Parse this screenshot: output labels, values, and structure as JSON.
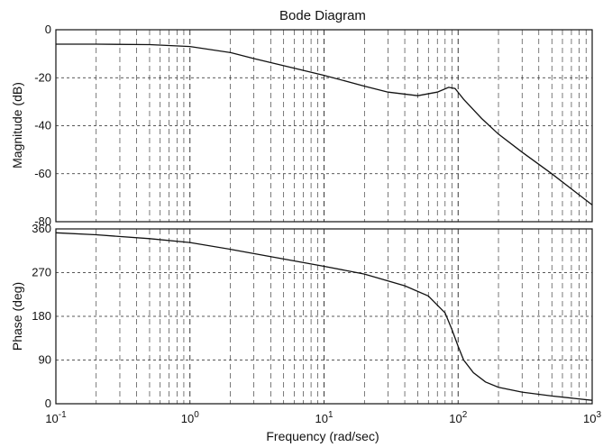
{
  "chart_data": {
    "type": "line",
    "title": "Bode Diagram",
    "xlabel": "Frequency  (rad/sec)",
    "x_scale": "log",
    "xlim": [
      0.1,
      1000
    ],
    "x_ticks": [
      {
        "value": 0.1,
        "base": "10",
        "exp": "-1"
      },
      {
        "value": 1,
        "base": "10",
        "exp": "0"
      },
      {
        "value": 10,
        "base": "10",
        "exp": "1"
      },
      {
        "value": 100,
        "base": "10",
        "exp": "2"
      },
      {
        "value": 1000,
        "base": "10",
        "exp": "3"
      }
    ],
    "grid": true,
    "line_color": "#111111",
    "panels": [
      {
        "ylabel": "Magnitude (dB)",
        "ylim": [
          -80,
          0
        ],
        "y_ticks": [
          "0",
          "-20",
          "-40",
          "-60",
          "-80"
        ],
        "y_tick_values": [
          0,
          -20,
          -40,
          -60,
          -80
        ],
        "x": [
          0.1,
          0.2,
          0.5,
          1,
          2,
          3,
          5,
          10,
          20,
          30,
          50,
          70,
          85,
          95,
          110,
          150,
          200,
          300,
          500,
          1000
        ],
        "y": [
          -6,
          -6,
          -6.2,
          -7,
          -9.5,
          -12,
          -15,
          -19,
          -23.5,
          -26,
          -27.5,
          -26,
          -24,
          -24.5,
          -29,
          -37,
          -43.5,
          -51,
          -60,
          -73
        ]
      },
      {
        "ylabel": "Phase (deg)",
        "ylim": [
          0,
          360
        ],
        "y_ticks": [
          "360",
          "270",
          "180",
          "90",
          "0"
        ],
        "y_tick_values": [
          360,
          270,
          180,
          90,
          0
        ],
        "x": [
          0.1,
          0.2,
          0.5,
          1,
          2,
          5,
          10,
          20,
          40,
          60,
          80,
          90,
          100,
          110,
          130,
          160,
          200,
          300,
          500,
          1000
        ],
        "y": [
          352,
          348,
          340,
          332,
          318,
          298,
          283,
          267,
          243,
          222,
          187,
          153,
          118,
          90,
          64,
          45,
          34,
          24,
          16,
          7
        ]
      }
    ]
  }
}
